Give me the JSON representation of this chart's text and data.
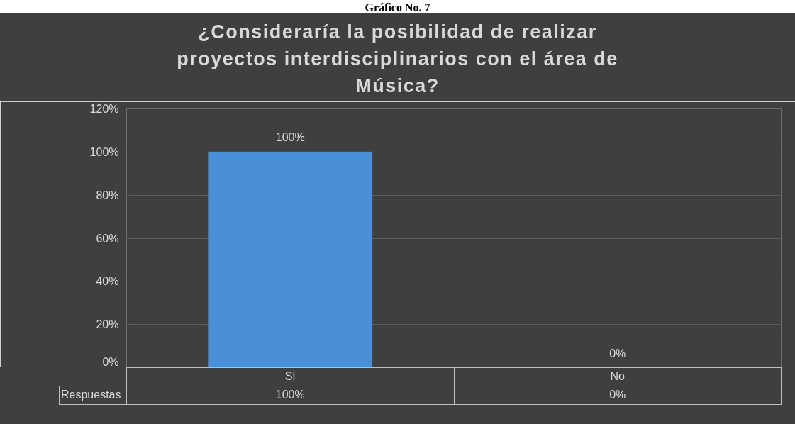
{
  "chart_data": {
    "type": "bar",
    "title": "¿Consideraría la posibilidad de realizar proyectos interdisciplinarios con el área de Música?",
    "categories": [
      "Sí",
      "No"
    ],
    "series": [
      {
        "name": "Respuestas",
        "color": "#4a90d9",
        "values": [
          100,
          0
        ],
        "value_labels": [
          "100%",
          "0%"
        ]
      }
    ],
    "ylim": [
      0,
      120
    ],
    "yticks": [
      {
        "value": 0,
        "label": "0%"
      },
      {
        "value": 20,
        "label": "20%"
      },
      {
        "value": 40,
        "label": "40%"
      },
      {
        "value": 60,
        "label": "60%"
      },
      {
        "value": 80,
        "label": "80%"
      },
      {
        "value": 100,
        "label": "100%"
      },
      {
        "value": 120,
        "label": "120%"
      }
    ],
    "grid": "y",
    "annotations": [
      "Gráfico No. 7"
    ]
  }
}
